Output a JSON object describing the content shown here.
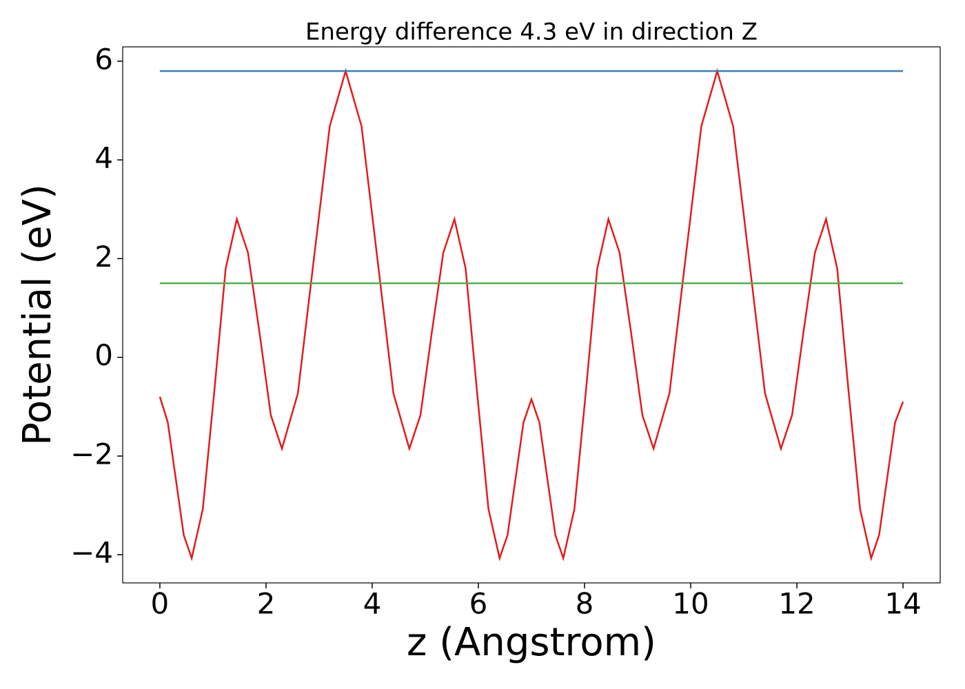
{
  "chart_data": {
    "type": "line",
    "title": "Energy difference 4.3 eV in direction Z",
    "xlabel": "z (Angstrom)",
    "ylabel": "Potential (eV)",
    "xlim": [
      -0.7,
      14.7
    ],
    "ylim": [
      -4.57,
      6.29
    ],
    "xticks": [
      0,
      2,
      4,
      6,
      8,
      10,
      12,
      14
    ],
    "yticks": [
      {
        "value": -4,
        "label": "−4"
      },
      {
        "value": -2,
        "label": "−2"
      },
      0,
      2,
      4,
      6
    ],
    "grid": false,
    "series": [
      {
        "color": "#e41a1c",
        "x": [
          0,
          0.15,
          0.3,
          0.45,
          0.6,
          0.81,
          1.03,
          1.24,
          1.45,
          1.66,
          1.88,
          2.09,
          2.3,
          2.6,
          2.9,
          3.2,
          3.5,
          3.8,
          4.1,
          4.4,
          4.7,
          4.91,
          5.12,
          5.34,
          5.55,
          5.76,
          5.97,
          6.19,
          6.4,
          6.55,
          6.7,
          6.85,
          7,
          7.15,
          7.3,
          7.45,
          7.6,
          7.81,
          8.03,
          8.24,
          8.45,
          8.66,
          8.88,
          9.09,
          9.3,
          9.6,
          9.9,
          10.2,
          10.5,
          10.8,
          11.1,
          11.4,
          11.7,
          11.91,
          12.12,
          12.34,
          12.55,
          12.76,
          12.97,
          13.19,
          13.4,
          13.55,
          13.7,
          13.85,
          14
        ],
        "values": [
          -0.8,
          -1.32,
          -2.46,
          -3.6,
          -4.07,
          -3.07,
          -0.64,
          1.8,
          2.8,
          2.12,
          0.48,
          -1.17,
          -1.85,
          -0.73,
          1.98,
          4.68,
          5.8,
          4.68,
          1.98,
          -0.73,
          -1.85,
          -1.17,
          0.48,
          2.12,
          2.8,
          1.8,
          -0.64,
          -3.07,
          -4.07,
          -3.6,
          -2.46,
          -1.32,
          -0.85,
          -1.32,
          -2.46,
          -3.6,
          -4.07,
          -3.07,
          -0.64,
          1.8,
          2.8,
          2.12,
          0.48,
          -1.17,
          -1.85,
          -0.73,
          1.98,
          4.68,
          5.8,
          4.68,
          1.98,
          -0.73,
          -1.85,
          -1.17,
          0.48,
          2.12,
          2.8,
          1.8,
          -0.64,
          -3.07,
          -4.07,
          -3.6,
          -2.46,
          -1.32,
          -0.9
        ]
      },
      {
        "color": "#377eb8",
        "x": [
          0,
          14
        ],
        "values": [
          5.8,
          5.8
        ]
      },
      {
        "color": "#4daf4a",
        "x": [
          0,
          14
        ],
        "values": [
          1.5,
          1.5
        ]
      }
    ]
  }
}
